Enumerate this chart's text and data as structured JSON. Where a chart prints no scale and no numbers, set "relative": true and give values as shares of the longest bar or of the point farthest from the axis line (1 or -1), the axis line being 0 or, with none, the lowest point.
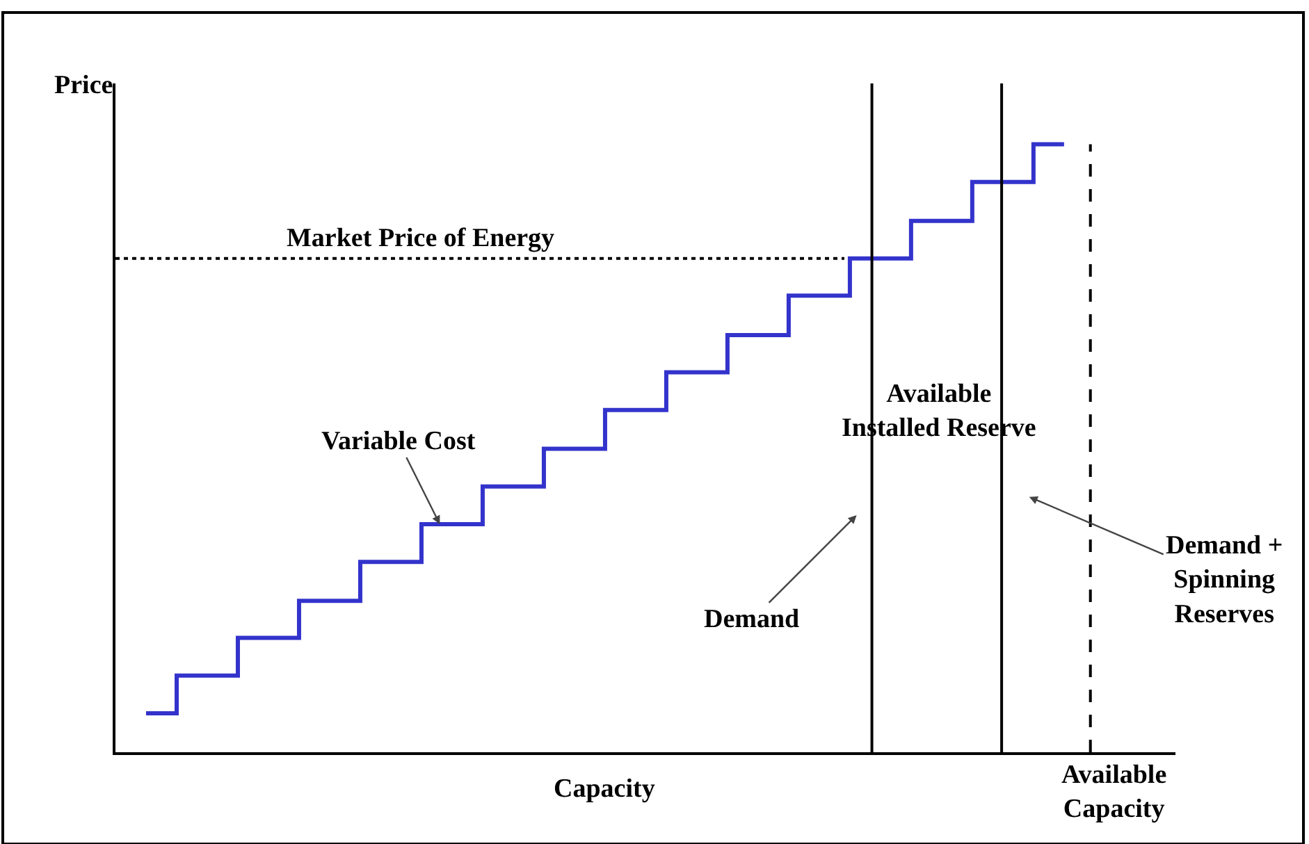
{
  "chart_data": {
    "type": "step",
    "relative": true,
    "xlabel": "Capacity",
    "ylabel": "Price",
    "categories": [
      null,
      null,
      null,
      null,
      null,
      null,
      null,
      null,
      null,
      null,
      null,
      null,
      null,
      null,
      null,
      null
    ],
    "series": [
      {
        "color": "#3333cc",
        "values": [
          0.064,
          0.126,
          0.188,
          0.249,
          0.313,
          0.375,
          0.437,
          0.499,
          0.563,
          0.625,
          0.686,
          0.751,
          0.812,
          0.874,
          0.938,
          1
        ]
      }
    ],
    "ref_lines": [
      {
        "axis": "y",
        "value": 0.812,
        "label": "Market Price of Energy",
        "line_style": "dotted",
        "color": "#000000"
      }
    ],
    "annotations": [
      "Variable Cost",
      "Available Installed Reserve",
      "Demand",
      "Demand + Spinning Reserves",
      "Available Capacity"
    ]
  }
}
